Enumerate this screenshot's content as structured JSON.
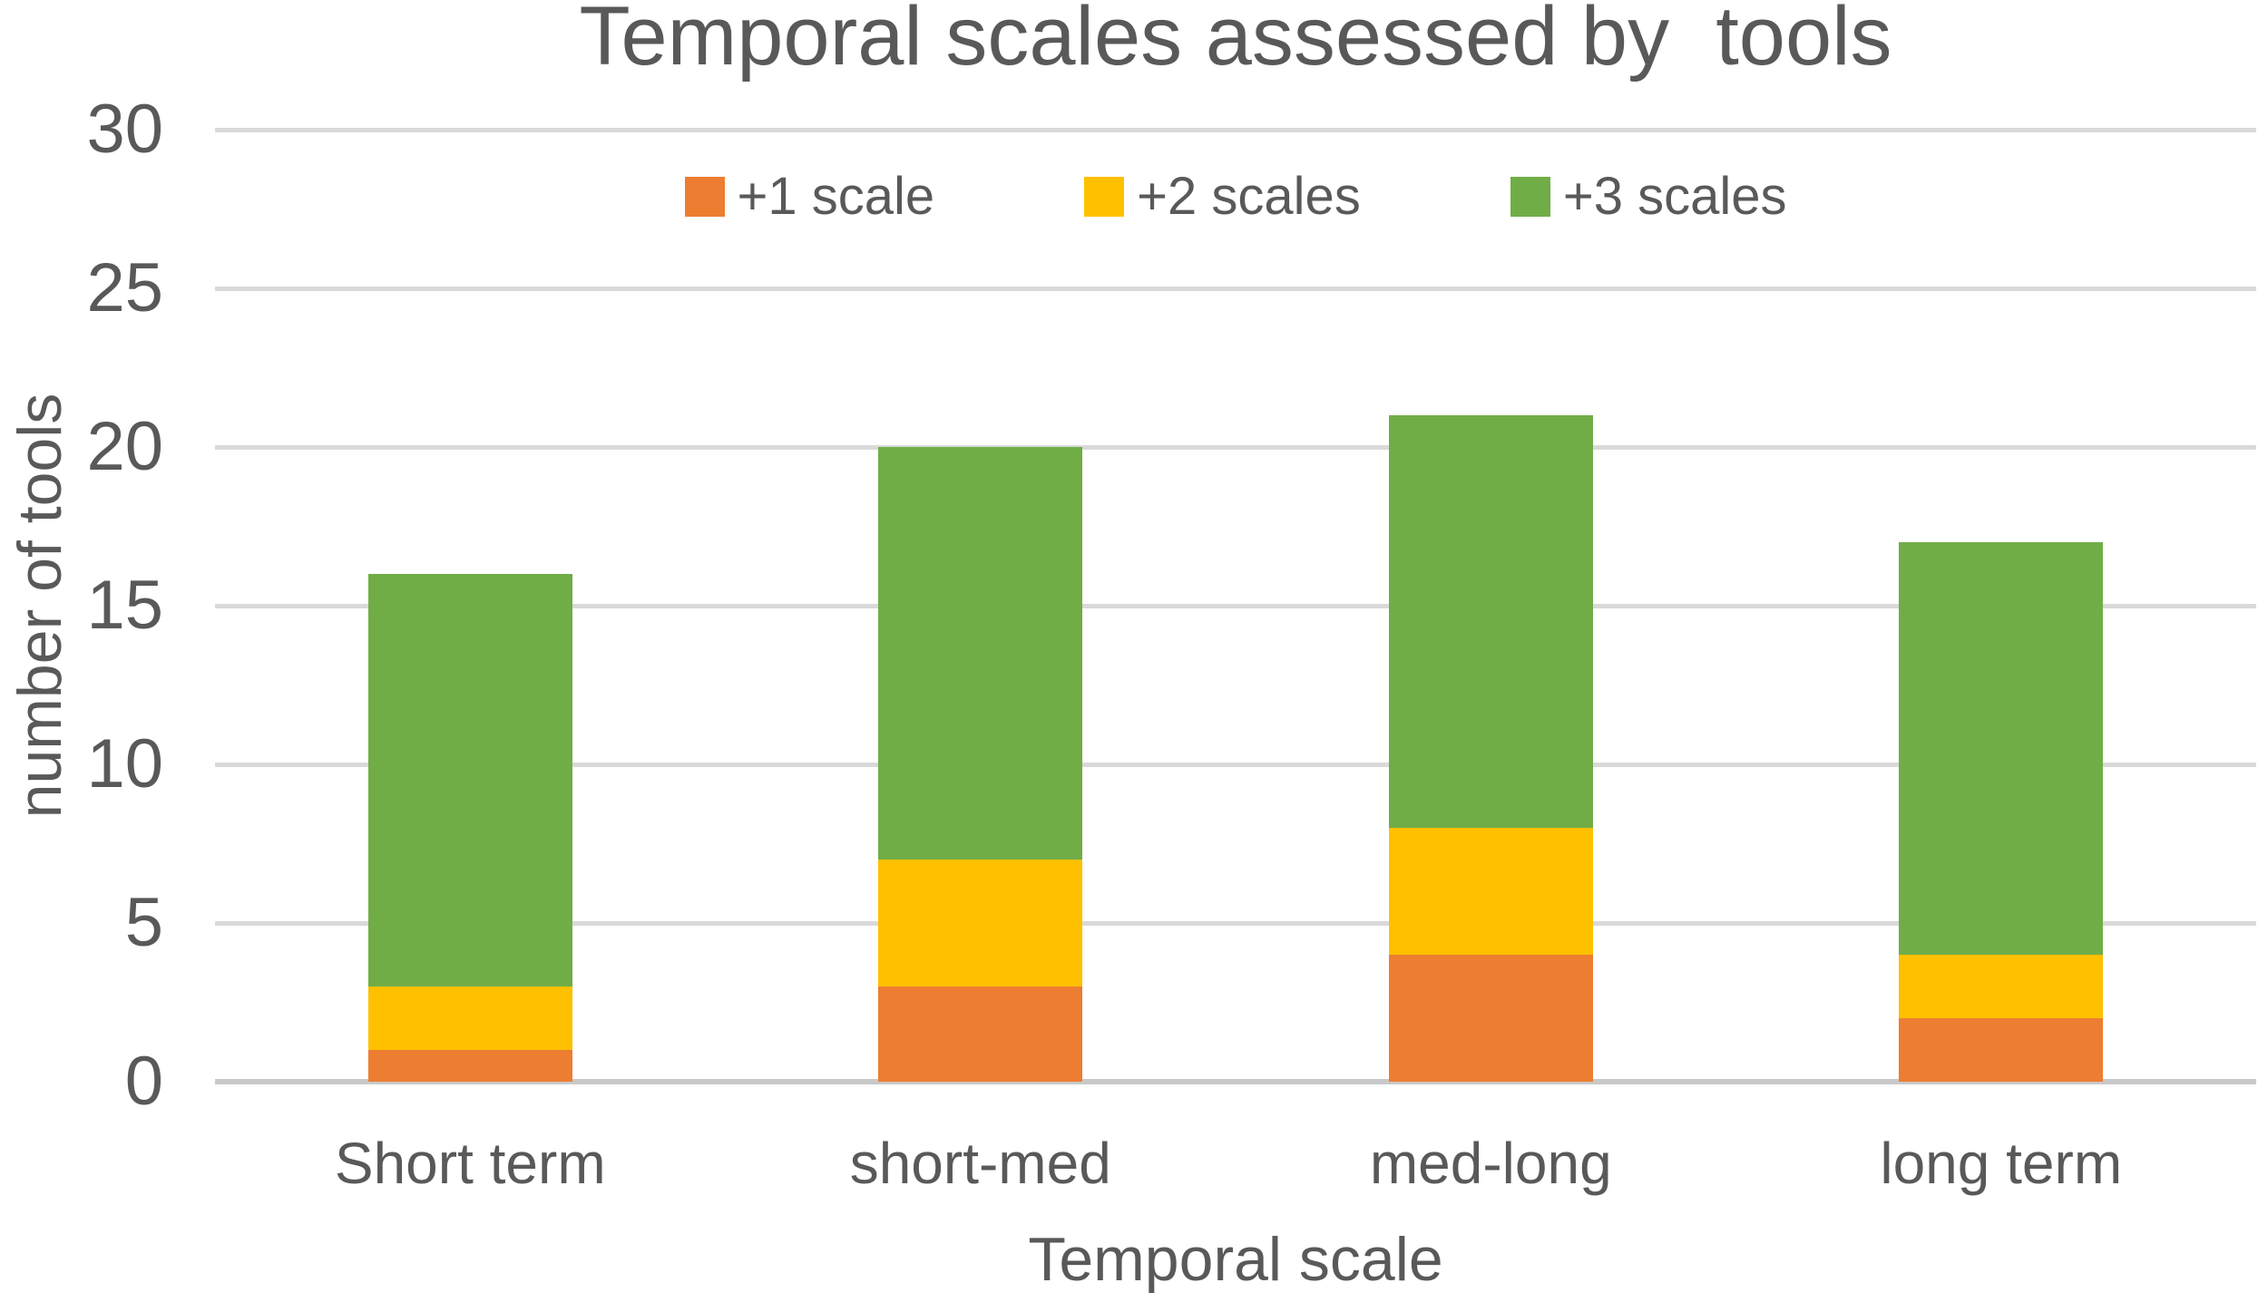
{
  "chart_data": {
    "type": "bar",
    "stacked": true,
    "title": "Temporal scales assessed by  tools",
    "xlabel": "Temporal scale",
    "ylabel": "number of tools",
    "categories": [
      "Short term",
      "short-med",
      "med-long",
      "long term"
    ],
    "series": [
      {
        "name": "+1 scale",
        "color": "#ED7D31",
        "values": [
          1,
          3,
          4,
          2
        ]
      },
      {
        "name": "+2 scales",
        "color": "#FFC000",
        "values": [
          2,
          4,
          4,
          2
        ]
      },
      {
        "name": "+3 scales",
        "color": "#70AD47",
        "values": [
          13,
          13,
          13,
          13
        ]
      }
    ],
    "ylim": [
      0,
      30
    ],
    "yticks": [
      0,
      5,
      10,
      15,
      20,
      25,
      30
    ],
    "grid": "horizontal",
    "legend_position": "top-center-inside",
    "colors": {
      "text": "#595959",
      "gridline": "#D9D9D9",
      "baseline": "#C9C9C9",
      "background": "#FFFFFF"
    }
  }
}
